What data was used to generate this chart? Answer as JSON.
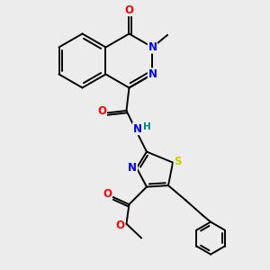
{
  "bg_color": "#ececec",
  "bond_color": "#000000",
  "atom_colors": {
    "N": "#0000ff",
    "O": "#ff0000",
    "S": "#cccc00",
    "H": "#008080",
    "C": "#000000"
  },
  "figsize": [
    3.0,
    3.0
  ],
  "dpi": 100,
  "lw": 1.4,
  "fs": 8.5,
  "fs_small": 7.5
}
